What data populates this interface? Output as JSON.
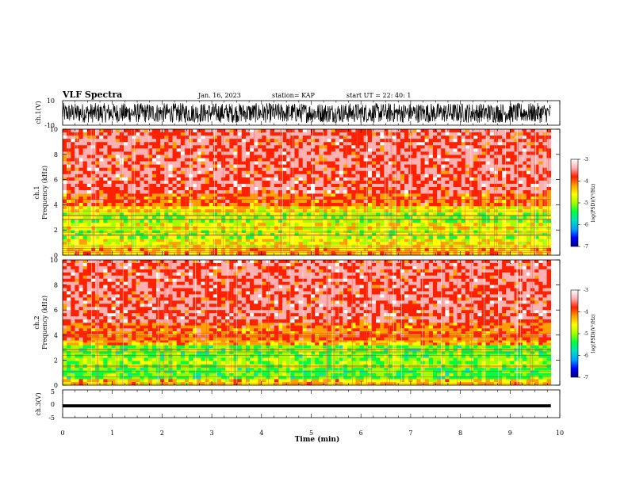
{
  "header": {
    "title": "VLF Spectra",
    "date": "Jan. 16, 2023",
    "station": "station= KAP",
    "start_ut": "start UT =  22: 40: 1"
  },
  "chart_data": [
    {
      "type": "line",
      "panel": "ch1-waveform",
      "ylabel": "ch.1(V)",
      "ylim": [
        -10,
        10
      ],
      "yticks": [
        "10",
        "-10"
      ],
      "xlim": [
        0,
        10
      ],
      "data_extent_min": [
        0,
        9.82
      ],
      "description_values": {
        "typical_range_V": [
          -8,
          8
        ]
      }
    },
    {
      "type": "heatmap",
      "panel": "ch1-spectrogram",
      "ylabel_line1": "ch.1",
      "ylabel_line2": "Frequency (kHz)",
      "ylim": [
        0,
        10
      ],
      "yticks": [
        "0",
        "2",
        "4",
        "6",
        "8",
        "10"
      ],
      "xlim": [
        0,
        10
      ],
      "colorbar": {
        "label": "log(PSD)(V²/Hz)",
        "range": [
          -7,
          -3
        ],
        "ticks": [
          "-3",
          "-4",
          "-5",
          "-6",
          "-7"
        ]
      },
      "bands": [
        {
          "from_khz": 0.0,
          "to_khz": 0.6,
          "level": -4.3
        },
        {
          "from_khz": 0.6,
          "to_khz": 1.3,
          "level": -4.6
        },
        {
          "from_khz": 1.3,
          "to_khz": 2.0,
          "level": -4.9
        },
        {
          "from_khz": 2.0,
          "to_khz": 2.6,
          "level": -4.7
        },
        {
          "from_khz": 2.6,
          "to_khz": 3.4,
          "level": -5.0
        },
        {
          "from_khz": 3.4,
          "to_khz": 3.9,
          "level": -4.5
        },
        {
          "from_khz": 3.9,
          "to_khz": 4.9,
          "level": -4.0
        },
        {
          "from_khz": 4.9,
          "to_khz": 10.0,
          "level": -3.6
        }
      ]
    },
    {
      "type": "heatmap",
      "panel": "ch2-spectrogram",
      "ylabel_line1": "ch.2",
      "ylabel_line2": "Frequency (kHz)",
      "ylim": [
        0,
        10
      ],
      "yticks": [
        "0",
        "2",
        "4",
        "6",
        "8",
        "10"
      ],
      "xlim": [
        0,
        10
      ],
      "colorbar": {
        "label": "log(PSD)(V²/Hz)",
        "range": [
          -7,
          -3
        ],
        "ticks": [
          "-3",
          "-4",
          "-5",
          "-6",
          "-7"
        ]
      },
      "bands": [
        {
          "from_khz": 0.0,
          "to_khz": 0.5,
          "level": -4.4
        },
        {
          "from_khz": 0.5,
          "to_khz": 1.4,
          "level": -5.2
        },
        {
          "from_khz": 1.4,
          "to_khz": 2.2,
          "level": -5.0
        },
        {
          "from_khz": 2.2,
          "to_khz": 3.2,
          "level": -5.2
        },
        {
          "from_khz": 3.2,
          "to_khz": 3.6,
          "level": -4.3
        },
        {
          "from_khz": 3.6,
          "to_khz": 5.0,
          "level": -4.0
        },
        {
          "from_khz": 5.0,
          "to_khz": 10.0,
          "level": -3.6
        }
      ]
    },
    {
      "type": "line",
      "panel": "ch3-waveform",
      "ylabel": "ch.3(V)",
      "ylim": [
        -5,
        5
      ],
      "yticks": [
        "5",
        "0",
        "-5"
      ],
      "xlim": [
        0,
        10
      ],
      "xlabel": "Time (min)",
      "xticks": [
        "0",
        "1",
        "2",
        "3",
        "4",
        "5",
        "6",
        "7",
        "8",
        "9",
        "10"
      ],
      "band_V": [
        -1.3,
        -0.2
      ]
    }
  ],
  "colors": {
    "background": "#ffffff",
    "axis": "#000000",
    "trace": "#000000",
    "colormap": [
      "#000080",
      "#0000ff",
      "#00a0ff",
      "#00e0c0",
      "#00ff40",
      "#a0ff00",
      "#ffff00",
      "#ffa000",
      "#ff2000",
      "#ffb0b0",
      "#ffffff"
    ]
  }
}
